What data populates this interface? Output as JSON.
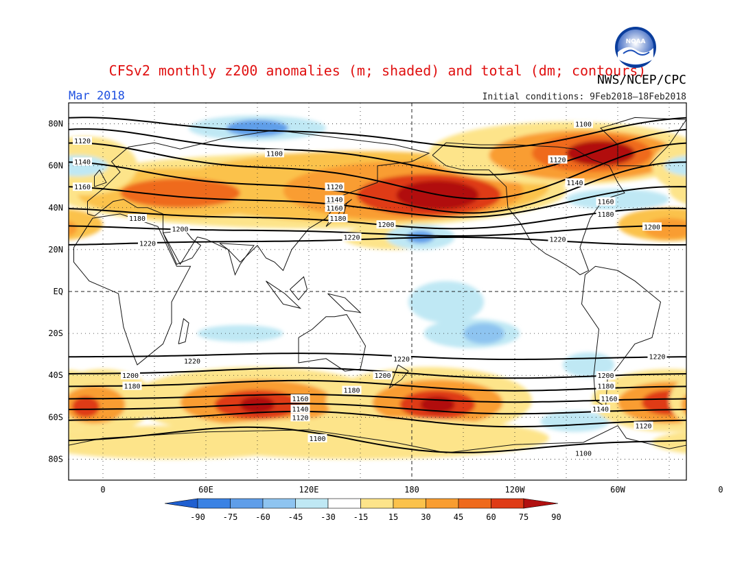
{
  "title": "CFSv2 monthly z200 anomalies (m; shaded) and total (dm; contours)",
  "agency": "NWS/NCEP/CPC",
  "logo_text": "NOAA",
  "valid_month": "Mar 2018",
  "initial_conditions": "Initial conditions: 9Feb2018–18Feb2018",
  "map": {
    "lat_labels": [
      "80N",
      "60N",
      "40N",
      "20N",
      "EQ",
      "20S",
      "40S",
      "60S",
      "80S"
    ],
    "lon_labels": [
      "0",
      "60E",
      "120E",
      "180",
      "120W",
      "60W",
      "0"
    ],
    "contour_labels": {
      "nh": [
        {
          "text": "1100",
          "lon": 100,
          "lat": 66
        },
        {
          "text": "1100",
          "lon": 280,
          "lat": 80
        },
        {
          "text": "1120",
          "lon": -12,
          "lat": 72
        },
        {
          "text": "1120",
          "lon": 135,
          "lat": 50
        },
        {
          "text": "1120",
          "lon": 265,
          "lat": 63
        },
        {
          "text": "1140",
          "lon": -12,
          "lat": 62
        },
        {
          "text": "1140",
          "lon": 135,
          "lat": 44
        },
        {
          "text": "1140",
          "lon": 275,
          "lat": 52
        },
        {
          "text": "1160",
          "lon": 135,
          "lat": 40
        },
        {
          "text": "1160",
          "lon": 293,
          "lat": 43
        },
        {
          "text": "1160",
          "lon": -12,
          "lat": 50
        },
        {
          "text": "1180",
          "lon": 20,
          "lat": 35
        },
        {
          "text": "1180",
          "lon": 137,
          "lat": 35
        },
        {
          "text": "1180",
          "lon": 293,
          "lat": 37
        },
        {
          "text": "1200",
          "lon": 45,
          "lat": 30
        },
        {
          "text": "1200",
          "lon": 165,
          "lat": 32
        },
        {
          "text": "1200",
          "lon": 320,
          "lat": 31
        },
        {
          "text": "1220",
          "lon": 26,
          "lat": 23
        },
        {
          "text": "1220",
          "lon": 145,
          "lat": 26
        },
        {
          "text": "1220",
          "lon": 265,
          "lat": 25
        }
      ],
      "sh": [
        {
          "text": "1220",
          "lon": 52,
          "lat": -33
        },
        {
          "text": "1220",
          "lon": 174,
          "lat": -32
        },
        {
          "text": "1220",
          "lon": 323,
          "lat": -31
        },
        {
          "text": "1200",
          "lon": 16,
          "lat": -40
        },
        {
          "text": "1200",
          "lon": 163,
          "lat": -40
        },
        {
          "text": "1200",
          "lon": 293,
          "lat": -40
        },
        {
          "text": "1180",
          "lon": 17,
          "lat": -45
        },
        {
          "text": "1180",
          "lon": 145,
          "lat": -47
        },
        {
          "text": "1180",
          "lon": 293,
          "lat": -45
        },
        {
          "text": "1160",
          "lon": 115,
          "lat": -51
        },
        {
          "text": "1160",
          "lon": 295,
          "lat": -51
        },
        {
          "text": "1140",
          "lon": 115,
          "lat": -56
        },
        {
          "text": "1140",
          "lon": 290,
          "lat": -56
        },
        {
          "text": "1120",
          "lon": 115,
          "lat": -60
        },
        {
          "text": "1120",
          "lon": 315,
          "lat": -64
        },
        {
          "text": "1100",
          "lon": 125,
          "lat": -70
        },
        {
          "text": "1100",
          "lon": 280,
          "lat": -77
        }
      ]
    },
    "anomaly_centers": [
      {
        "lon": 190,
        "lat": 46,
        "value": 90
      },
      {
        "lon": 285,
        "lat": 65,
        "value": 90
      },
      {
        "lon": 90,
        "lat": -54,
        "value": 90
      },
      {
        "lon": 195,
        "lat": -54,
        "value": 90
      },
      {
        "lon": 330,
        "lat": -53,
        "value": 85
      },
      {
        "lon": 0,
        "lat": -55,
        "value": 75
      },
      {
        "lon": 40,
        "lat": 48,
        "value": 55
      },
      {
        "lon": 330,
        "lat": 30,
        "value": 55
      },
      {
        "lon": 90,
        "lat": 78,
        "value": -50
      },
      {
        "lon": 185,
        "lat": 26,
        "value": -40
      },
      {
        "lon": 210,
        "lat": -20,
        "value": -35
      },
      {
        "lon": 300,
        "lat": 45,
        "value": -20
      }
    ]
  },
  "colorbar": {
    "labels": [
      "-90",
      "-75",
      "-60",
      "-45",
      "-30",
      "-15",
      "15",
      "30",
      "45",
      "60",
      "75",
      "90"
    ],
    "colors": [
      "#1f5fd0",
      "#3a82e4",
      "#5f9ee9",
      "#8ec4f0",
      "#bfe8f4",
      "#ffffff",
      "#fde48a",
      "#fbc24b",
      "#f99d30",
      "#ef6a1c",
      "#df3b16",
      "#b11010"
    ]
  }
}
